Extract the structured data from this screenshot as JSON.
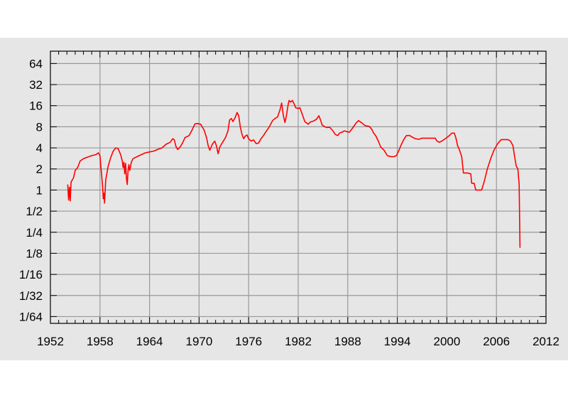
{
  "chart_data": {
    "type": "line",
    "title": "",
    "xlabel": "",
    "ylabel": "",
    "y_scale": "log2",
    "xlim": [
      1952,
      2012
    ],
    "ylim": [
      0.0125,
      96
    ],
    "grid": true,
    "legend": "none",
    "x_tick_labels": [
      "1952",
      "1958",
      "1964",
      "1970",
      "1976",
      "1982",
      "1988",
      "1994",
      "2000",
      "2006",
      "2012"
    ],
    "x_tick_values": [
      1952,
      1958,
      1964,
      1970,
      1976,
      1982,
      1988,
      1994,
      2000,
      2006,
      2012
    ],
    "y_tick_labels": [
      "64",
      "32",
      "16",
      "8",
      "4",
      "2",
      "1",
      "1/2",
      "1/4",
      "1/8",
      "1/16",
      "1/32",
      "1/64"
    ],
    "y_tick_values": [
      64,
      32,
      16,
      8,
      4,
      2,
      1,
      0.5,
      0.25,
      0.125,
      0.0625,
      0.03125,
      0.015625
    ],
    "colors": {
      "line": "#ff0000",
      "grid": "#999999",
      "frame": "#000000",
      "plot_background": "#e6e6e6",
      "outer_background": "#e6e6e6"
    },
    "series": [
      {
        "values": [
          [
            1954.1,
            1.2
          ],
          [
            1954.2,
            0.72
          ],
          [
            1954.3,
            1.1
          ],
          [
            1954.4,
            0.7
          ],
          [
            1954.5,
            1.3
          ],
          [
            1954.8,
            1.5
          ],
          [
            1955.0,
            1.9
          ],
          [
            1955.3,
            2.1
          ],
          [
            1955.6,
            2.6
          ],
          [
            1956.0,
            2.8
          ],
          [
            1956.5,
            2.95
          ],
          [
            1957.0,
            3.1
          ],
          [
            1957.5,
            3.2
          ],
          [
            1957.8,
            3.4
          ],
          [
            1958.0,
            3.1
          ],
          [
            1958.1,
            2.2
          ],
          [
            1958.3,
            1.2
          ],
          [
            1958.4,
            0.75
          ],
          [
            1958.5,
            0.9
          ],
          [
            1958.55,
            0.65
          ],
          [
            1958.7,
            1.4
          ],
          [
            1959.0,
            2.2
          ],
          [
            1959.3,
            2.9
          ],
          [
            1959.6,
            3.6
          ],
          [
            1959.9,
            4.0
          ],
          [
            1960.2,
            3.9
          ],
          [
            1960.5,
            3.2
          ],
          [
            1960.7,
            2.6
          ],
          [
            1960.8,
            2.1
          ],
          [
            1960.9,
            2.5
          ],
          [
            1961.0,
            1.7
          ],
          [
            1961.1,
            2.4
          ],
          [
            1961.2,
            1.5
          ],
          [
            1961.3,
            1.2
          ],
          [
            1961.4,
            1.9
          ],
          [
            1961.5,
            2.3
          ],
          [
            1961.6,
            1.9
          ],
          [
            1961.8,
            2.5
          ],
          [
            1962.0,
            2.8
          ],
          [
            1962.5,
            3.0
          ],
          [
            1963.0,
            3.2
          ],
          [
            1963.5,
            3.4
          ],
          [
            1964.0,
            3.5
          ],
          [
            1964.5,
            3.6
          ],
          [
            1965.0,
            3.8
          ],
          [
            1965.5,
            4.0
          ],
          [
            1966.0,
            4.5
          ],
          [
            1966.5,
            4.8
          ],
          [
            1966.8,
            5.4
          ],
          [
            1967.0,
            5.2
          ],
          [
            1967.2,
            4.2
          ],
          [
            1967.4,
            3.8
          ],
          [
            1967.7,
            4.1
          ],
          [
            1968.0,
            4.7
          ],
          [
            1968.3,
            5.6
          ],
          [
            1968.8,
            6.0
          ],
          [
            1969.2,
            7.4
          ],
          [
            1969.5,
            8.8
          ],
          [
            1969.8,
            8.9
          ],
          [
            1970.2,
            8.7
          ],
          [
            1970.6,
            7.2
          ],
          [
            1970.9,
            5.6
          ],
          [
            1971.1,
            4.3
          ],
          [
            1971.3,
            3.7
          ],
          [
            1971.6,
            4.5
          ],
          [
            1971.9,
            5.0
          ],
          [
            1972.1,
            4.3
          ],
          [
            1972.3,
            3.3
          ],
          [
            1972.5,
            4.1
          ],
          [
            1972.8,
            4.7
          ],
          [
            1973.2,
            5.6
          ],
          [
            1973.5,
            7.0
          ],
          [
            1973.7,
            10.0
          ],
          [
            1973.9,
            10.5
          ],
          [
            1974.1,
            9.5
          ],
          [
            1974.4,
            11.0
          ],
          [
            1974.6,
            12.8
          ],
          [
            1974.8,
            11.5
          ],
          [
            1975.0,
            7.8
          ],
          [
            1975.2,
            6.2
          ],
          [
            1975.4,
            5.4
          ],
          [
            1975.6,
            5.9
          ],
          [
            1975.8,
            6.1
          ],
          [
            1976.0,
            5.4
          ],
          [
            1976.3,
            5.0
          ],
          [
            1976.6,
            5.2
          ],
          [
            1976.9,
            4.6
          ],
          [
            1977.2,
            4.7
          ],
          [
            1977.5,
            5.4
          ],
          [
            1977.8,
            6.0
          ],
          [
            1978.1,
            6.8
          ],
          [
            1978.5,
            8.0
          ],
          [
            1978.9,
            9.8
          ],
          [
            1979.2,
            10.5
          ],
          [
            1979.5,
            11.0
          ],
          [
            1979.8,
            14.0
          ],
          [
            1980.0,
            17.5
          ],
          [
            1980.2,
            11.5
          ],
          [
            1980.4,
            9.2
          ],
          [
            1980.6,
            12.0
          ],
          [
            1980.8,
            17.0
          ],
          [
            1980.9,
            19.0
          ],
          [
            1981.1,
            18.0
          ],
          [
            1981.3,
            19.0
          ],
          [
            1981.5,
            17.0
          ],
          [
            1981.7,
            15.0
          ],
          [
            1982.0,
            14.5
          ],
          [
            1982.2,
            15.0
          ],
          [
            1982.5,
            12.0
          ],
          [
            1982.8,
            9.5
          ],
          [
            1983.2,
            8.7
          ],
          [
            1983.5,
            9.4
          ],
          [
            1983.8,
            9.6
          ],
          [
            1984.2,
            10.2
          ],
          [
            1984.5,
            11.5
          ],
          [
            1984.7,
            10.0
          ],
          [
            1984.9,
            8.5
          ],
          [
            1985.2,
            8.0
          ],
          [
            1985.5,
            7.8
          ],
          [
            1985.8,
            7.9
          ],
          [
            1986.2,
            7.0
          ],
          [
            1986.5,
            6.2
          ],
          [
            1986.8,
            6.0
          ],
          [
            1987.0,
            6.5
          ],
          [
            1987.3,
            6.7
          ],
          [
            1987.6,
            7.0
          ],
          [
            1987.9,
            6.8
          ],
          [
            1988.2,
            6.7
          ],
          [
            1988.6,
            7.7
          ],
          [
            1989.0,
            9.0
          ],
          [
            1989.3,
            9.8
          ],
          [
            1989.7,
            9.1
          ],
          [
            1990.1,
            8.3
          ],
          [
            1990.6,
            8.1
          ],
          [
            1990.9,
            7.4
          ],
          [
            1991.1,
            6.6
          ],
          [
            1991.4,
            5.9
          ],
          [
            1991.7,
            5.0
          ],
          [
            1992.0,
            4.1
          ],
          [
            1992.4,
            3.7
          ],
          [
            1992.8,
            3.1
          ],
          [
            1993.2,
            3.0
          ],
          [
            1993.6,
            3.0
          ],
          [
            1993.9,
            3.1
          ],
          [
            1994.2,
            3.7
          ],
          [
            1994.5,
            4.5
          ],
          [
            1994.8,
            5.3
          ],
          [
            1995.1,
            6.0
          ],
          [
            1995.5,
            6.0
          ],
          [
            1995.8,
            5.7
          ],
          [
            1996.2,
            5.4
          ],
          [
            1996.6,
            5.3
          ],
          [
            1997.0,
            5.5
          ],
          [
            1997.4,
            5.5
          ],
          [
            1997.8,
            5.5
          ],
          [
            1998.2,
            5.5
          ],
          [
            1998.6,
            5.5
          ],
          [
            1998.8,
            5.0
          ],
          [
            1999.1,
            4.8
          ],
          [
            1999.5,
            5.1
          ],
          [
            1999.9,
            5.5
          ],
          [
            2000.3,
            6.0
          ],
          [
            2000.6,
            6.5
          ],
          [
            2000.9,
            6.5
          ],
          [
            2001.1,
            5.5
          ],
          [
            2001.3,
            4.3
          ],
          [
            2001.5,
            3.8
          ],
          [
            2001.8,
            3.0
          ],
          [
            2002.0,
            1.75
          ],
          [
            2002.5,
            1.75
          ],
          [
            2002.9,
            1.7
          ],
          [
            2003.0,
            1.25
          ],
          [
            2003.3,
            1.25
          ],
          [
            2003.5,
            1.0
          ],
          [
            2003.9,
            1.0
          ],
          [
            2004.2,
            1.0
          ],
          [
            2004.5,
            1.3
          ],
          [
            2004.9,
            2.0
          ],
          [
            2005.3,
            2.8
          ],
          [
            2005.7,
            3.7
          ],
          [
            2006.1,
            4.5
          ],
          [
            2006.4,
            5.0
          ],
          [
            2006.6,
            5.25
          ],
          [
            2007.0,
            5.25
          ],
          [
            2007.4,
            5.25
          ],
          [
            2007.7,
            5.0
          ],
          [
            2008.0,
            4.3
          ],
          [
            2008.2,
            3.0
          ],
          [
            2008.4,
            2.2
          ],
          [
            2008.6,
            2.0
          ],
          [
            2008.75,
            1.2
          ],
          [
            2008.85,
            0.15
          ]
        ]
      }
    ]
  }
}
